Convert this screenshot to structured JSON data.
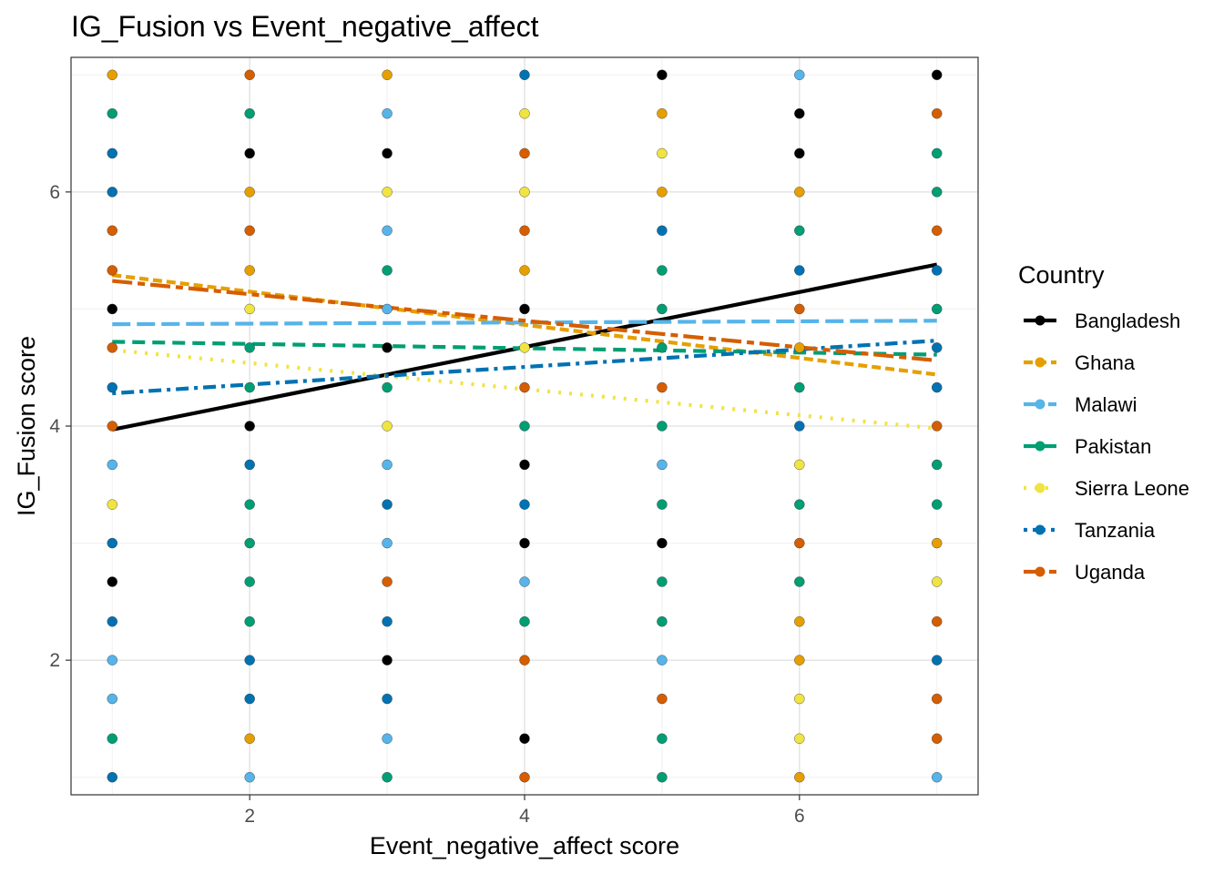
{
  "chart_data": {
    "type": "scatter",
    "title": "IG_Fusion vs Event_negative_affect",
    "xlabel": "Event_negative_affect score",
    "ylabel": "IG_Fusion score",
    "xlim": [
      0.7,
      7.3
    ],
    "ylim": [
      0.85,
      7.15
    ],
    "x_ticks": [
      2,
      4,
      6
    ],
    "y_ticks": [
      2,
      4,
      6
    ],
    "grid": true,
    "legend": {
      "title": "Country",
      "position": "right",
      "entries": [
        {
          "name": "Bangladesh",
          "color": "#000000",
          "dash": "solid"
        },
        {
          "name": "Ghana",
          "color": "#E69F00",
          "dash": "shortdash"
        },
        {
          "name": "Malawi",
          "color": "#56B4E9",
          "dash": "longdash"
        },
        {
          "name": "Pakistan",
          "color": "#009E73",
          "dash": "dashed"
        },
        {
          "name": "Sierra Leone",
          "color": "#F0E442",
          "dash": "dotted"
        },
        {
          "name": "Tanzania",
          "color": "#0072B2",
          "dash": "dotdash"
        },
        {
          "name": "Uganda",
          "color": "#D55E00",
          "dash": "twodash"
        }
      ]
    },
    "points": [
      {
        "x": 1,
        "y": 7,
        "country": "Ghana"
      },
      {
        "x": 1,
        "y": 6.67,
        "country": "Pakistan"
      },
      {
        "x": 1,
        "y": 6.33,
        "country": "Tanzania"
      },
      {
        "x": 1,
        "y": 6,
        "country": "Tanzania"
      },
      {
        "x": 1,
        "y": 5.67,
        "country": "Uganda"
      },
      {
        "x": 1,
        "y": 5.33,
        "country": "Uganda"
      },
      {
        "x": 1,
        "y": 5,
        "country": "Bangladesh"
      },
      {
        "x": 1,
        "y": 4.67,
        "country": "Uganda"
      },
      {
        "x": 1,
        "y": 4.33,
        "country": "Tanzania"
      },
      {
        "x": 1,
        "y": 4,
        "country": "Uganda"
      },
      {
        "x": 1,
        "y": 3.67,
        "country": "Malawi"
      },
      {
        "x": 1,
        "y": 3.33,
        "country": "Sierra Leone"
      },
      {
        "x": 1,
        "y": 3,
        "country": "Tanzania"
      },
      {
        "x": 1,
        "y": 2.67,
        "country": "Bangladesh"
      },
      {
        "x": 1,
        "y": 2.33,
        "country": "Tanzania"
      },
      {
        "x": 1,
        "y": 2,
        "country": "Malawi"
      },
      {
        "x": 1,
        "y": 1.67,
        "country": "Malawi"
      },
      {
        "x": 1,
        "y": 1.33,
        "country": "Pakistan"
      },
      {
        "x": 1,
        "y": 1,
        "country": "Tanzania"
      },
      {
        "x": 2,
        "y": 7,
        "country": "Uganda"
      },
      {
        "x": 2,
        "y": 6.67,
        "country": "Pakistan"
      },
      {
        "x": 2,
        "y": 6.33,
        "country": "Bangladesh"
      },
      {
        "x": 2,
        "y": 6,
        "country": "Ghana"
      },
      {
        "x": 2,
        "y": 5.67,
        "country": "Uganda"
      },
      {
        "x": 2,
        "y": 5.33,
        "country": "Ghana"
      },
      {
        "x": 2,
        "y": 5,
        "country": "Sierra Leone"
      },
      {
        "x": 2,
        "y": 4.67,
        "country": "Pakistan"
      },
      {
        "x": 2,
        "y": 4.33,
        "country": "Pakistan"
      },
      {
        "x": 2,
        "y": 4,
        "country": "Bangladesh"
      },
      {
        "x": 2,
        "y": 3.67,
        "country": "Tanzania"
      },
      {
        "x": 2,
        "y": 3.33,
        "country": "Pakistan"
      },
      {
        "x": 2,
        "y": 3,
        "country": "Pakistan"
      },
      {
        "x": 2,
        "y": 2.67,
        "country": "Pakistan"
      },
      {
        "x": 2,
        "y": 2.33,
        "country": "Pakistan"
      },
      {
        "x": 2,
        "y": 2,
        "country": "Tanzania"
      },
      {
        "x": 2,
        "y": 1.67,
        "country": "Tanzania"
      },
      {
        "x": 2,
        "y": 1.33,
        "country": "Ghana"
      },
      {
        "x": 2,
        "y": 1,
        "country": "Malawi"
      },
      {
        "x": 3,
        "y": 7,
        "country": "Ghana"
      },
      {
        "x": 3,
        "y": 6.67,
        "country": "Malawi"
      },
      {
        "x": 3,
        "y": 6.33,
        "country": "Bangladesh"
      },
      {
        "x": 3,
        "y": 6,
        "country": "Sierra Leone"
      },
      {
        "x": 3,
        "y": 5.67,
        "country": "Malawi"
      },
      {
        "x": 3,
        "y": 5.33,
        "country": "Pakistan"
      },
      {
        "x": 3,
        "y": 5,
        "country": "Malawi"
      },
      {
        "x": 3,
        "y": 4.67,
        "country": "Bangladesh"
      },
      {
        "x": 3,
        "y": 4.33,
        "country": "Pakistan"
      },
      {
        "x": 3,
        "y": 4,
        "country": "Sierra Leone"
      },
      {
        "x": 3,
        "y": 3.67,
        "country": "Malawi"
      },
      {
        "x": 3,
        "y": 3.33,
        "country": "Tanzania"
      },
      {
        "x": 3,
        "y": 3,
        "country": "Malawi"
      },
      {
        "x": 3,
        "y": 2.67,
        "country": "Uganda"
      },
      {
        "x": 3,
        "y": 2.33,
        "country": "Tanzania"
      },
      {
        "x": 3,
        "y": 2,
        "country": "Bangladesh"
      },
      {
        "x": 3,
        "y": 1.67,
        "country": "Tanzania"
      },
      {
        "x": 3,
        "y": 1.33,
        "country": "Malawi"
      },
      {
        "x": 3,
        "y": 1,
        "country": "Pakistan"
      },
      {
        "x": 4,
        "y": 7,
        "country": "Tanzania"
      },
      {
        "x": 4,
        "y": 6.67,
        "country": "Sierra Leone"
      },
      {
        "x": 4,
        "y": 6.33,
        "country": "Uganda"
      },
      {
        "x": 4,
        "y": 6,
        "country": "Sierra Leone"
      },
      {
        "x": 4,
        "y": 5.67,
        "country": "Uganda"
      },
      {
        "x": 4,
        "y": 5.33,
        "country": "Ghana"
      },
      {
        "x": 4,
        "y": 5,
        "country": "Bangladesh"
      },
      {
        "x": 4,
        "y": 4.67,
        "country": "Sierra Leone"
      },
      {
        "x": 4,
        "y": 4.33,
        "country": "Uganda"
      },
      {
        "x": 4,
        "y": 4,
        "country": "Pakistan"
      },
      {
        "x": 4,
        "y": 3.67,
        "country": "Bangladesh"
      },
      {
        "x": 4,
        "y": 3.33,
        "country": "Tanzania"
      },
      {
        "x": 4,
        "y": 3,
        "country": "Bangladesh"
      },
      {
        "x": 4,
        "y": 2.67,
        "country": "Malawi"
      },
      {
        "x": 4,
        "y": 2.33,
        "country": "Pakistan"
      },
      {
        "x": 4,
        "y": 2,
        "country": "Uganda"
      },
      {
        "x": 4,
        "y": 1.33,
        "country": "Bangladesh"
      },
      {
        "x": 4,
        "y": 1,
        "country": "Uganda"
      },
      {
        "x": 5,
        "y": 7,
        "country": "Bangladesh"
      },
      {
        "x": 5,
        "y": 6.67,
        "country": "Ghana"
      },
      {
        "x": 5,
        "y": 6.33,
        "country": "Sierra Leone"
      },
      {
        "x": 5,
        "y": 6,
        "country": "Ghana"
      },
      {
        "x": 5,
        "y": 5.67,
        "country": "Tanzania"
      },
      {
        "x": 5,
        "y": 5.33,
        "country": "Pakistan"
      },
      {
        "x": 5,
        "y": 5,
        "country": "Pakistan"
      },
      {
        "x": 5,
        "y": 4.67,
        "country": "Pakistan"
      },
      {
        "x": 5,
        "y": 4.33,
        "country": "Uganda"
      },
      {
        "x": 5,
        "y": 4,
        "country": "Pakistan"
      },
      {
        "x": 5,
        "y": 3.67,
        "country": "Malawi"
      },
      {
        "x": 5,
        "y": 3.33,
        "country": "Pakistan"
      },
      {
        "x": 5,
        "y": 3,
        "country": "Bangladesh"
      },
      {
        "x": 5,
        "y": 2.67,
        "country": "Pakistan"
      },
      {
        "x": 5,
        "y": 2.33,
        "country": "Pakistan"
      },
      {
        "x": 5,
        "y": 2,
        "country": "Malawi"
      },
      {
        "x": 5,
        "y": 1.67,
        "country": "Uganda"
      },
      {
        "x": 5,
        "y": 1.33,
        "country": "Pakistan"
      },
      {
        "x": 5,
        "y": 1,
        "country": "Pakistan"
      },
      {
        "x": 6,
        "y": 7,
        "country": "Malawi"
      },
      {
        "x": 6,
        "y": 6.67,
        "country": "Bangladesh"
      },
      {
        "x": 6,
        "y": 6.33,
        "country": "Bangladesh"
      },
      {
        "x": 6,
        "y": 6,
        "country": "Ghana"
      },
      {
        "x": 6,
        "y": 5.67,
        "country": "Pakistan"
      },
      {
        "x": 6,
        "y": 5.33,
        "country": "Tanzania"
      },
      {
        "x": 6,
        "y": 5,
        "country": "Uganda"
      },
      {
        "x": 6,
        "y": 4.67,
        "country": "Ghana"
      },
      {
        "x": 6,
        "y": 4.33,
        "country": "Pakistan"
      },
      {
        "x": 6,
        "y": 4,
        "country": "Tanzania"
      },
      {
        "x": 6,
        "y": 3.67,
        "country": "Sierra Leone"
      },
      {
        "x": 6,
        "y": 3.33,
        "country": "Pakistan"
      },
      {
        "x": 6,
        "y": 3,
        "country": "Uganda"
      },
      {
        "x": 6,
        "y": 2.67,
        "country": "Pakistan"
      },
      {
        "x": 6,
        "y": 2.33,
        "country": "Ghana"
      },
      {
        "x": 6,
        "y": 2,
        "country": "Ghana"
      },
      {
        "x": 6,
        "y": 1.67,
        "country": "Sierra Leone"
      },
      {
        "x": 6,
        "y": 1.33,
        "country": "Sierra Leone"
      },
      {
        "x": 6,
        "y": 1,
        "country": "Ghana"
      },
      {
        "x": 7,
        "y": 7,
        "country": "Bangladesh"
      },
      {
        "x": 7,
        "y": 6.67,
        "country": "Uganda"
      },
      {
        "x": 7,
        "y": 6.33,
        "country": "Pakistan"
      },
      {
        "x": 7,
        "y": 6,
        "country": "Pakistan"
      },
      {
        "x": 7,
        "y": 5.67,
        "country": "Uganda"
      },
      {
        "x": 7,
        "y": 5.33,
        "country": "Tanzania"
      },
      {
        "x": 7,
        "y": 5,
        "country": "Pakistan"
      },
      {
        "x": 7,
        "y": 4.67,
        "country": "Tanzania"
      },
      {
        "x": 7,
        "y": 4.33,
        "country": "Tanzania"
      },
      {
        "x": 7,
        "y": 4,
        "country": "Uganda"
      },
      {
        "x": 7,
        "y": 3.67,
        "country": "Pakistan"
      },
      {
        "x": 7,
        "y": 3.33,
        "country": "Pakistan"
      },
      {
        "x": 7,
        "y": 3,
        "country": "Ghana"
      },
      {
        "x": 7,
        "y": 2.67,
        "country": "Sierra Leone"
      },
      {
        "x": 7,
        "y": 2.33,
        "country": "Uganda"
      },
      {
        "x": 7,
        "y": 2,
        "country": "Tanzania"
      },
      {
        "x": 7,
        "y": 1.67,
        "country": "Uganda"
      },
      {
        "x": 7,
        "y": 1.33,
        "country": "Uganda"
      },
      {
        "x": 7,
        "y": 1,
        "country": "Malawi"
      }
    ],
    "series": [
      {
        "name": "Bangladesh",
        "x": [
          1,
          7
        ],
        "y": [
          3.97,
          5.38
        ]
      },
      {
        "name": "Ghana",
        "x": [
          1,
          7
        ],
        "y": [
          5.29,
          4.44
        ]
      },
      {
        "name": "Malawi",
        "x": [
          1,
          7
        ],
        "y": [
          4.87,
          4.9
        ]
      },
      {
        "name": "Pakistan",
        "x": [
          1,
          7
        ],
        "y": [
          4.72,
          4.61
        ]
      },
      {
        "name": "Sierra Leone",
        "x": [
          1,
          7
        ],
        "y": [
          4.65,
          3.98
        ]
      },
      {
        "name": "Tanzania",
        "x": [
          1,
          7
        ],
        "y": [
          4.28,
          4.73
        ]
      },
      {
        "name": "Uganda",
        "x": [
          1,
          7
        ],
        "y": [
          5.24,
          4.56
        ]
      }
    ]
  }
}
